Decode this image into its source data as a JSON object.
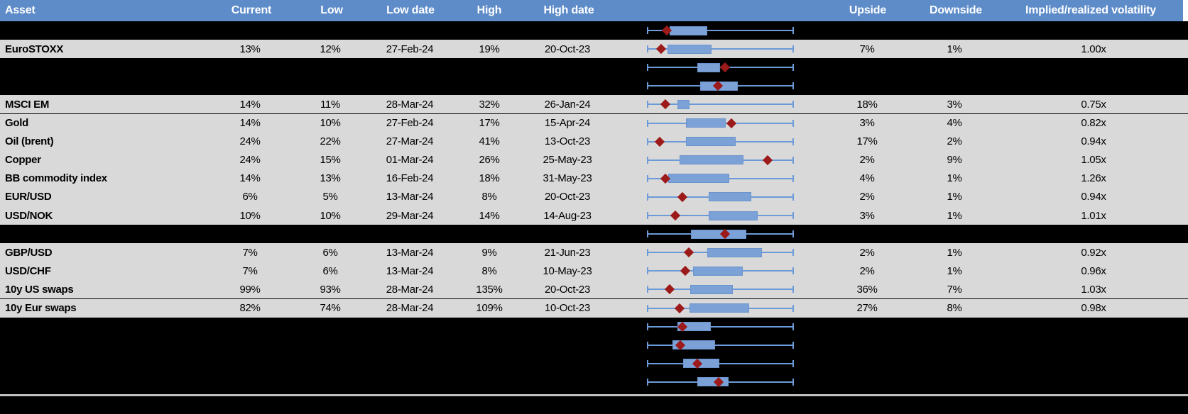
{
  "colors": {
    "header_bg": "#5E8CC9",
    "header_text": "#FFFFFF",
    "header_gap": "#FFFFFF",
    "data_row_bg": "#D9D9D9",
    "redacted_row_bg": "#000000",
    "text": "#000000",
    "whisker": "#6D9AD8",
    "box_fill": "#7BA1D7",
    "box_border": "#6A94CE",
    "marker": "#9C1A19",
    "divider": "#BFBFBF"
  },
  "chart_data": {
    "type": "table",
    "columns": [
      "Asset",
      "Current",
      "Low",
      "Low date",
      "High",
      "High date",
      "Upside",
      "Downside",
      "Implied/realized volatility"
    ],
    "embedded_chart": {
      "type": "boxplot",
      "orientation": "horizontal",
      "marker_glyph": "diamond",
      "axis_range_pct": [
        0,
        100
      ]
    },
    "rows": [
      {
        "type": "redacted",
        "range_chart": {
          "box_start_pct": 15.1,
          "box_end_pct": 41.0,
          "marker_pct": 13.2
        }
      },
      {
        "type": "data",
        "asset": "EuroSTOXX",
        "current": "13%",
        "low": "12%",
        "low_date": "27-Feb-24",
        "high": "19%",
        "high_date": "20-Oct-23",
        "upside": "7%",
        "downside": "1%",
        "implied_realized": "1.00x",
        "range_chart": {
          "box_start_pct": 13.7,
          "box_end_pct": 43.9,
          "marker_pct": 9.3
        }
      },
      {
        "type": "redacted",
        "range_chart": {
          "box_start_pct": 34.1,
          "box_end_pct": 49.8,
          "marker_pct": 53.2
        }
      },
      {
        "type": "redacted",
        "range_chart": {
          "box_start_pct": 36.1,
          "box_end_pct": 62.0,
          "marker_pct": 48.3
        }
      },
      {
        "type": "data",
        "asset": "MSCI EM",
        "current": "14%",
        "low": "11%",
        "low_date": "28-Mar-24",
        "high": "32%",
        "high_date": "26-Jan-24",
        "upside": "18%",
        "downside": "3%",
        "implied_realized": "0.75x",
        "range_chart": {
          "box_start_pct": 20.5,
          "box_end_pct": 28.8,
          "marker_pct": 12.2
        }
      },
      {
        "type": "data",
        "asset": "Gold",
        "current": "14%",
        "low": "10%",
        "low_date": "27-Feb-24",
        "high": "17%",
        "high_date": "15-Apr-24",
        "upside": "3%",
        "downside": "4%",
        "implied_realized": "0.82x",
        "range_chart": {
          "box_start_pct": 26.3,
          "box_end_pct": 53.7,
          "marker_pct": 57.6
        }
      },
      {
        "type": "data",
        "asset": "Oil (brent)",
        "current": "24%",
        "low": "22%",
        "low_date": "27-Mar-24",
        "high": "41%",
        "high_date": "13-Oct-23",
        "upside": "17%",
        "downside": "2%",
        "implied_realized": "0.94x",
        "range_chart": {
          "box_start_pct": 26.3,
          "box_end_pct": 60.5,
          "marker_pct": 8.3
        }
      },
      {
        "type": "data",
        "asset": "Copper",
        "current": "24%",
        "low": "15%",
        "low_date": "01-Mar-24",
        "high": "26%",
        "high_date": "25-May-23",
        "upside": "2%",
        "downside": "9%",
        "implied_realized": "1.05x",
        "range_chart": {
          "box_start_pct": 22.0,
          "box_end_pct": 65.9,
          "marker_pct": 82.4
        }
      },
      {
        "type": "data",
        "asset": "BB commodity index",
        "current": "14%",
        "low": "13%",
        "low_date": "16-Feb-24",
        "high": "18%",
        "high_date": "31-May-23",
        "upside": "4%",
        "downside": "1%",
        "implied_realized": "1.26x",
        "range_chart": {
          "box_start_pct": 14.1,
          "box_end_pct": 56.1,
          "marker_pct": 12.2
        }
      },
      {
        "type": "data",
        "asset": "EUR/USD",
        "current": "6%",
        "low": "5%",
        "low_date": "13-Mar-24",
        "high": "8%",
        "high_date": "20-Oct-23",
        "upside": "2%",
        "downside": "1%",
        "implied_realized": "0.94x",
        "range_chart": {
          "box_start_pct": 42.0,
          "box_end_pct": 71.2,
          "marker_pct": 23.9
        }
      },
      {
        "type": "data",
        "asset": "USD/NOK",
        "current": "10%",
        "low": "10%",
        "low_date": "29-Mar-24",
        "high": "14%",
        "high_date": "14-Aug-23",
        "upside": "3%",
        "downside": "1%",
        "implied_realized": "1.01x",
        "range_chart": {
          "box_start_pct": 42.0,
          "box_end_pct": 75.6,
          "marker_pct": 19.0
        }
      },
      {
        "type": "redacted",
        "range_chart": {
          "box_start_pct": 29.8,
          "box_end_pct": 67.8,
          "marker_pct": 53.2
        }
      },
      {
        "type": "data",
        "asset": "GBP/USD",
        "current": "7%",
        "low": "6%",
        "low_date": "13-Mar-24",
        "high": "9%",
        "high_date": "21-Jun-23",
        "upside": "2%",
        "downside": "1%",
        "implied_realized": "0.92x",
        "range_chart": {
          "box_start_pct": 41.0,
          "box_end_pct": 78.5,
          "marker_pct": 28.3
        }
      },
      {
        "type": "data",
        "asset": "USD/CHF",
        "current": "7%",
        "low": "6%",
        "low_date": "13-Mar-24",
        "high": "8%",
        "high_date": "10-May-23",
        "upside": "2%",
        "downside": "1%",
        "implied_realized": "0.96x",
        "range_chart": {
          "box_start_pct": 31.2,
          "box_end_pct": 65.4,
          "marker_pct": 25.9
        }
      },
      {
        "type": "data",
        "asset": "10y US swaps",
        "current": "99%",
        "low": "93%",
        "low_date": "28-Mar-24",
        "high": "135%",
        "high_date": "20-Oct-23",
        "upside": "36%",
        "downside": "7%",
        "implied_realized": "1.03x",
        "range_chart": {
          "box_start_pct": 29.3,
          "box_end_pct": 58.5,
          "marker_pct": 15.1
        }
      },
      {
        "type": "data",
        "asset": "10y Eur swaps",
        "current": "82%",
        "low": "74%",
        "low_date": "28-Mar-24",
        "high": "109%",
        "high_date": "10-Oct-23",
        "upside": "27%",
        "downside": "8%",
        "implied_realized": "0.98x",
        "range_chart": {
          "box_start_pct": 28.8,
          "box_end_pct": 69.8,
          "marker_pct": 22.0
        }
      },
      {
        "type": "redacted",
        "range_chart": {
          "box_start_pct": 20.5,
          "box_end_pct": 43.4,
          "marker_pct": 24.0
        }
      },
      {
        "type": "redacted",
        "range_chart": {
          "box_start_pct": 17.1,
          "box_end_pct": 46.3,
          "marker_pct": 22.6
        }
      },
      {
        "type": "redacted",
        "range_chart": {
          "box_start_pct": 24.4,
          "box_end_pct": 49.3,
          "marker_pct": 34.3
        }
      },
      {
        "type": "redacted",
        "range_chart": {
          "box_start_pct": 34.1,
          "box_end_pct": 55.6,
          "marker_pct": 48.8
        }
      }
    ]
  }
}
